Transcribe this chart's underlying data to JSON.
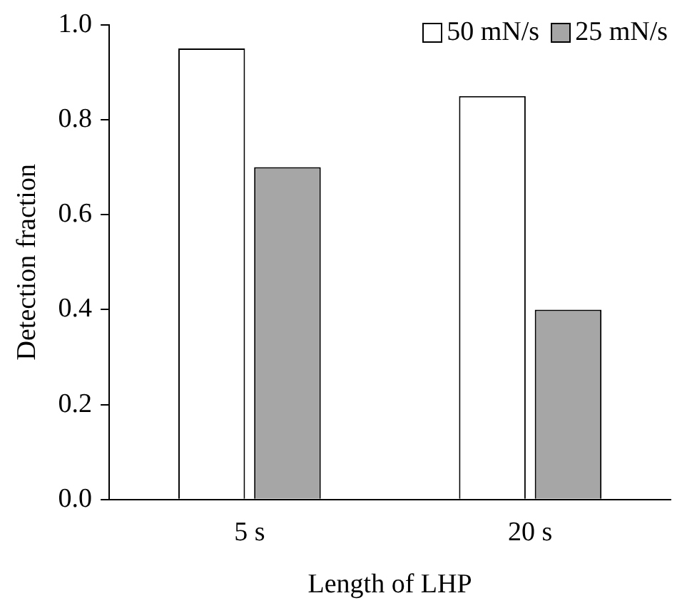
{
  "chart_data": {
    "type": "bar",
    "xlabel": "Length of LHP",
    "ylabel": "Detection fraction",
    "categories": [
      "5 s",
      "20 s"
    ],
    "series": [
      {
        "name": "50 mN/s",
        "color": "#ffffff",
        "values": [
          0.95,
          0.85
        ]
      },
      {
        "name": "25 mN/s",
        "color": "#a6a6a6",
        "values": [
          0.7,
          0.4
        ]
      }
    ],
    "ylim": [
      0,
      1
    ],
    "yticks": [
      {
        "value": 0,
        "label": "0.0"
      },
      0.2,
      0.4,
      0.6,
      0.8,
      {
        "value": 1,
        "label": "1.0"
      }
    ],
    "grid": false,
    "legend": "top right"
  }
}
